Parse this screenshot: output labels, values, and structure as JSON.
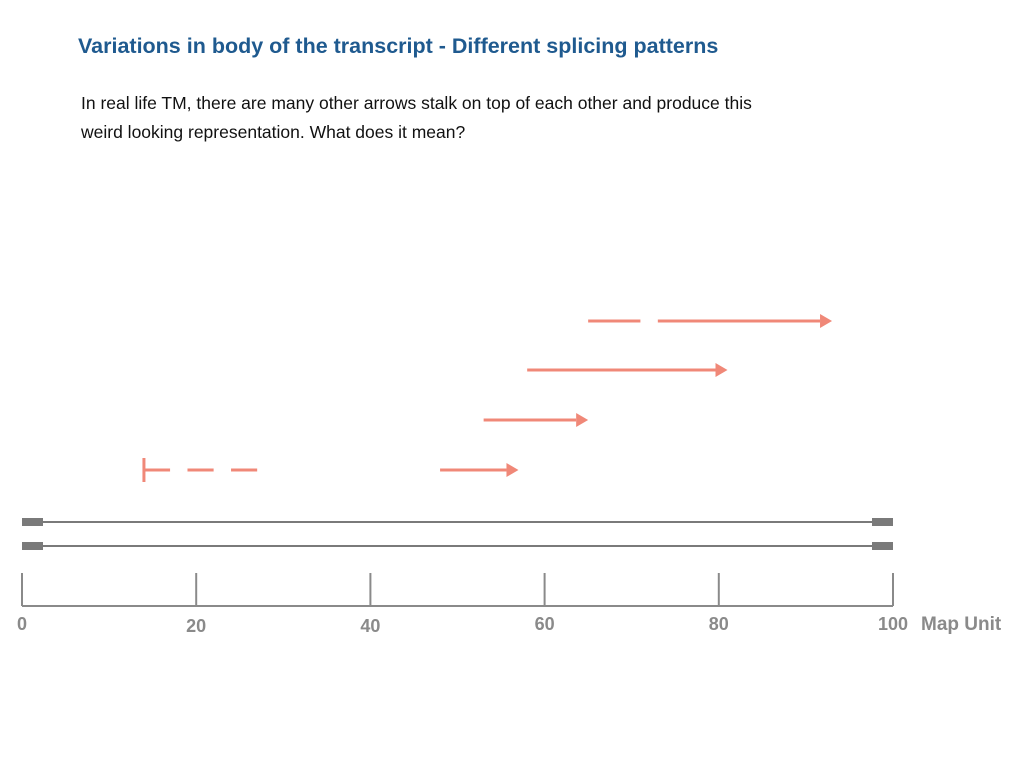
{
  "slide": {
    "title": "Variations in body of the transcript - Different splicing patterns",
    "body_lines": [
      "In real life TM, there are many other arrows stalk on top of each other and produce this",
      "weird looking representation. What does it mean?"
    ]
  },
  "colors": {
    "title": "#1f5a8f",
    "arrow": "#f08878",
    "axis": "#8a8a8a",
    "genome_line": "#7a7a7a"
  },
  "map_axis": {
    "min": 0,
    "max": 100,
    "ticks": [
      0,
      20,
      40,
      60,
      80,
      100
    ],
    "tick_labels": [
      "0",
      "20",
      "40",
      "60",
      "80",
      "100"
    ],
    "unit_label": "Map Unit"
  },
  "genome_lines": 2,
  "transcripts": [
    {
      "kind": "dashed-start",
      "segments": [
        [
          14,
          17
        ],
        [
          19,
          22
        ],
        [
          24,
          27
        ]
      ],
      "start_bar": true,
      "arrow": false
    },
    {
      "kind": "arrow",
      "segments": [
        [
          48,
          57
        ]
      ],
      "arrow": true
    },
    {
      "kind": "arrow",
      "segments": [
        [
          53,
          65
        ]
      ],
      "arrow": true
    },
    {
      "kind": "arrow",
      "segments": [
        [
          58,
          81
        ]
      ],
      "arrow": true
    },
    {
      "kind": "split-arrow",
      "segments": [
        [
          65,
          71
        ],
        [
          73,
          93
        ]
      ],
      "arrow": true
    }
  ]
}
